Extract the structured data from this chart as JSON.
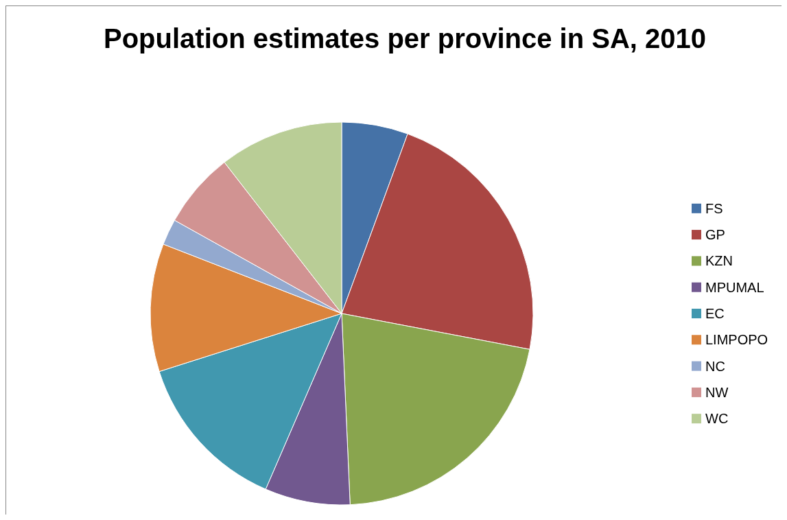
{
  "chart_data": {
    "type": "pie",
    "title": "Population estimates per province in SA, 2010",
    "categories": [
      "FS",
      "GP",
      "KZN",
      "MPUMAL",
      "EC",
      "LIMPOPO",
      "NC",
      "NW",
      "WC"
    ],
    "values": [
      5.6,
      22.4,
      21.3,
      7.2,
      13.6,
      10.8,
      2.2,
      6.4,
      10.5
    ],
    "colors": [
      "#4572a7",
      "#aa4643",
      "#89a54e",
      "#71588f",
      "#4198af",
      "#db843d",
      "#93a9cf",
      "#d19392",
      "#b9cd96"
    ],
    "legend": "right"
  }
}
